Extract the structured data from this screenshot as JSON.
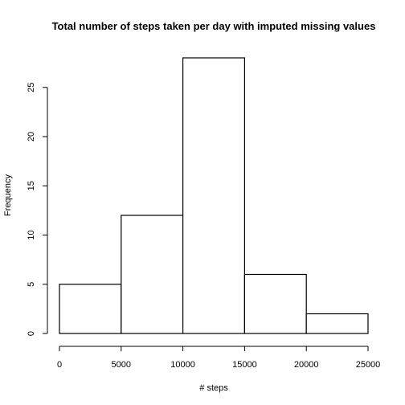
{
  "chart_data": {
    "type": "bar",
    "subtype": "histogram",
    "title": "Total number of steps taken per day with imputed missing values",
    "xlabel": "# steps",
    "ylabel": "Frequency",
    "bins": [
      {
        "from": 0,
        "to": 5000,
        "count": 5
      },
      {
        "from": 5000,
        "to": 10000,
        "count": 12
      },
      {
        "from": 10000,
        "to": 15000,
        "count": 28
      },
      {
        "from": 15000,
        "to": 20000,
        "count": 6
      },
      {
        "from": 20000,
        "to": 25000,
        "count": 2
      }
    ],
    "xlim": [
      0,
      25000
    ],
    "ylim": [
      0,
      28
    ],
    "xticks": [
      0,
      5000,
      10000,
      15000,
      20000,
      25000
    ],
    "yticks": [
      0,
      5,
      10,
      15,
      20,
      25
    ],
    "grid": false,
    "legend": "none",
    "bar_fill": "#ffffff",
    "bar_stroke": "#000000"
  }
}
